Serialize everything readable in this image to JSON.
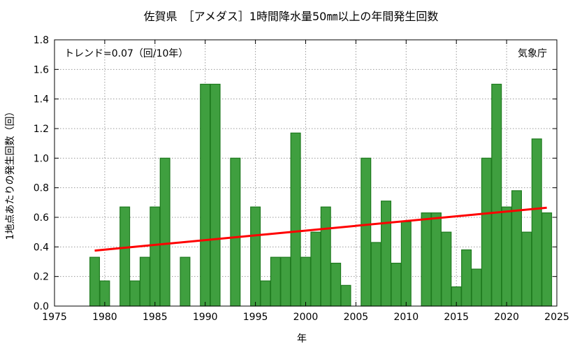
{
  "title": "佐賀県　［アメダス］1時間降水量50㎜以上の年間発生回数",
  "xlabel": "年",
  "ylabel": "1地点あたりの発生回数（回）",
  "trend_text": "トレンド=0.07（回/10年）",
  "agency": "気象庁",
  "colors": {
    "bar_fill": "#3f9f3f",
    "bar_stroke": "#1e7a1e",
    "trend": "#ff0000",
    "grid": "#999999"
  },
  "chart_data": {
    "type": "bar",
    "title": "佐賀県　［アメダス］1時間降水量50㎜以上の年間発生回数",
    "xlabel": "年",
    "ylabel": "1地点あたりの発生回数（回）",
    "xlim": [
      1975,
      2025
    ],
    "ylim": [
      0,
      1.8
    ],
    "x_ticks": [
      1975,
      1980,
      1985,
      1990,
      1995,
      2000,
      2005,
      2010,
      2015,
      2020,
      2025
    ],
    "y_ticks": [
      0.0,
      0.2,
      0.4,
      0.6,
      0.8,
      1.0,
      1.2,
      1.4,
      1.6,
      1.8
    ],
    "grid": true,
    "x": [
      1979,
      1980,
      1981,
      1982,
      1983,
      1984,
      1985,
      1986,
      1987,
      1988,
      1989,
      1990,
      1991,
      1992,
      1993,
      1994,
      1995,
      1996,
      1997,
      1998,
      1999,
      2000,
      2001,
      2002,
      2003,
      2004,
      2005,
      2006,
      2007,
      2008,
      2009,
      2010,
      2011,
      2012,
      2013,
      2014,
      2015,
      2016,
      2017,
      2018,
      2019,
      2020,
      2021,
      2022,
      2023,
      2024
    ],
    "values": [
      0.33,
      0.17,
      0,
      0.67,
      0.17,
      0.33,
      0.67,
      1.0,
      0,
      0.33,
      0,
      1.5,
      1.5,
      0,
      1.0,
      0,
      0.67,
      0.17,
      0.33,
      0.33,
      1.17,
      0.33,
      0.5,
      0.67,
      0.29,
      0.14,
      0,
      1.0,
      0.43,
      0.71,
      0.29,
      0.57,
      0,
      0.63,
      0.63,
      0.5,
      0.13,
      0.38,
      0.25,
      1.0,
      1.5,
      0.67,
      0.78,
      0.5,
      1.13,
      0.63
    ],
    "trend": {
      "x": [
        1979,
        2024
      ],
      "y": [
        0.375,
        0.665
      ]
    }
  }
}
